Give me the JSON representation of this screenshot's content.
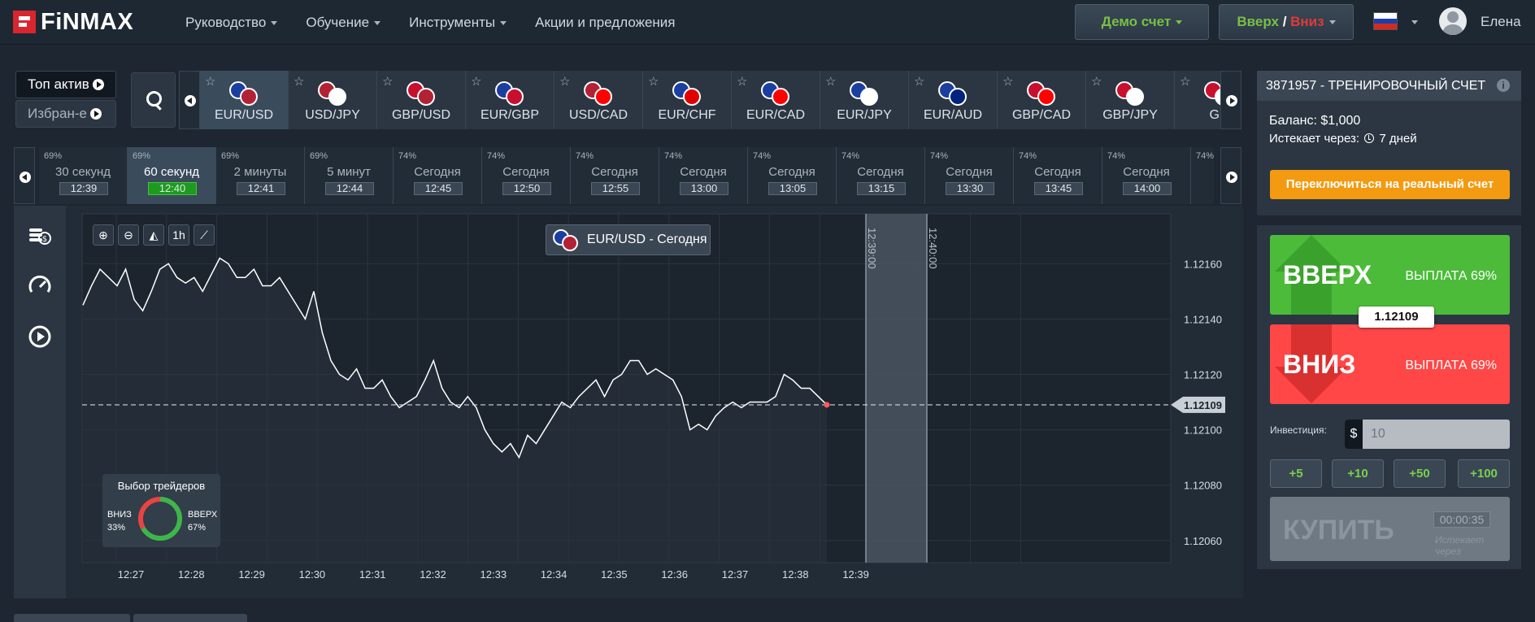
{
  "header": {
    "logo": "FiNMAX",
    "nav": [
      "Руководство",
      "Обучение",
      "Инструменты",
      "Акции и предложения"
    ],
    "nav_has_caret": [
      true,
      true,
      true,
      false
    ],
    "demo_button": "Демо счет",
    "updown_up": "Вверх",
    "updown_sep": " / ",
    "updown_down": "Вниз",
    "username": "Елена",
    "language": "ru"
  },
  "assets": {
    "top_label": "Топ актив",
    "fav_label": "Избран-е",
    "items": [
      {
        "pair": "EUR/USD",
        "active": true,
        "c1": "#1b3fa0",
        "c2": "#b22234"
      },
      {
        "pair": "USD/JPY",
        "active": false,
        "c1": "#b22234",
        "c2": "#ffffff"
      },
      {
        "pair": "GBP/USD",
        "active": false,
        "c1": "#c8102e",
        "c2": "#b22234"
      },
      {
        "pair": "EUR/GBP",
        "active": false,
        "c1": "#1b3fa0",
        "c2": "#c8102e"
      },
      {
        "pair": "USD/CAD",
        "active": false,
        "c1": "#b22234",
        "c2": "#ff0000"
      },
      {
        "pair": "EUR/CHF",
        "active": false,
        "c1": "#1b3fa0",
        "c2": "#e00000"
      },
      {
        "pair": "EUR/CAD",
        "active": false,
        "c1": "#1b3fa0",
        "c2": "#ff0000"
      },
      {
        "pair": "EUR/JPY",
        "active": false,
        "c1": "#1b3fa0",
        "c2": "#ffffff"
      },
      {
        "pair": "EUR/AUD",
        "active": false,
        "c1": "#1b3fa0",
        "c2": "#00247d"
      },
      {
        "pair": "GBP/CAD",
        "active": false,
        "c1": "#c8102e",
        "c2": "#ff0000"
      },
      {
        "pair": "GBP/JPY",
        "active": false,
        "c1": "#c8102e",
        "c2": "#ffffff"
      },
      {
        "pair": "GB",
        "active": false,
        "c1": "#c8102e",
        "c2": "#ffffff"
      }
    ]
  },
  "times": [
    {
      "pct": "69%",
      "label": "30 секунд",
      "time": "12:39",
      "active": false
    },
    {
      "pct": "69%",
      "label": "60 секунд",
      "time": "12:40",
      "active": true
    },
    {
      "pct": "69%",
      "label": "2 минуты",
      "time": "12:41",
      "active": false
    },
    {
      "pct": "69%",
      "label": "5 минут",
      "time": "12:44",
      "active": false
    },
    {
      "pct": "74%",
      "label": "Сегодня",
      "time": "12:45",
      "active": false
    },
    {
      "pct": "74%",
      "label": "Сегодня",
      "time": "12:50",
      "active": false
    },
    {
      "pct": "74%",
      "label": "Сегодня",
      "time": "12:55",
      "active": false
    },
    {
      "pct": "74%",
      "label": "Сегодня",
      "time": "13:00",
      "active": false
    },
    {
      "pct": "74%",
      "label": "Сегодня",
      "time": "13:05",
      "active": false
    },
    {
      "pct": "74%",
      "label": "Сегодня",
      "time": "13:15",
      "active": false
    },
    {
      "pct": "74%",
      "label": "Сегодня",
      "time": "13:30",
      "active": false
    },
    {
      "pct": "74%",
      "label": "Сегодня",
      "time": "13:45",
      "active": false
    },
    {
      "pct": "74%",
      "label": "Сегодня",
      "time": "14:00",
      "active": false
    },
    {
      "pct": "74%",
      "label": "",
      "time": "",
      "active": false
    }
  ],
  "chart": {
    "pair_title": "EUR/USD - Сегодня",
    "zoom_buttons": [
      "zoom-in",
      "zoom-out",
      "area-chart",
      "1h",
      "line-chart"
    ],
    "zoom_labels": [
      "⊕",
      "⊖",
      "◭",
      "1h",
      "⟋"
    ],
    "current_price": "1.12109",
    "expiry_marks": [
      "12:39:00",
      "12:40:00"
    ],
    "traders": {
      "title": "Выбор трейдеров",
      "down_label": "ВНИЗ",
      "down_pct": "33%",
      "up_label": "ВВЕРХ",
      "up_pct": "67%",
      "down_value": 33,
      "up_value": 67
    }
  },
  "chart_data": {
    "type": "line",
    "x_ticks": [
      "12:27",
      "12:28",
      "12:29",
      "12:30",
      "12:31",
      "12:32",
      "12:33",
      "12:34",
      "12:35",
      "12:36",
      "12:37",
      "12:38",
      "12:39"
    ],
    "y_ticks": [
      "1.12160",
      "1.12140",
      "1.12120",
      "1.12100",
      "1.12080",
      "1.12060"
    ],
    "y_tick_values": [
      1.1216,
      1.1214,
      1.1212,
      1.121,
      1.1208,
      1.1206
    ],
    "ylim": [
      1.12052,
      1.12178
    ],
    "xlim": [
      0,
      18
    ],
    "current_line": 1.12109,
    "series": [
      {
        "values": [
          1.12145,
          1.12152,
          1.12158,
          1.12155,
          1.12152,
          1.12158,
          1.12147,
          1.12143,
          1.1215,
          1.12158,
          1.1216,
          1.12155,
          1.12153,
          1.12155,
          1.1215,
          1.12156,
          1.12162,
          1.1216,
          1.12155,
          1.12155,
          1.12158,
          1.12152,
          1.12152,
          1.12155,
          1.1215,
          1.12145,
          1.1214,
          1.1215,
          1.12135,
          1.12125,
          1.1212,
          1.12118,
          1.12122,
          1.12115,
          1.12115,
          1.12118,
          1.12112,
          1.12108,
          1.1211,
          1.12112,
          1.12118,
          1.12125,
          1.12115,
          1.1211,
          1.12108,
          1.12112,
          1.12108,
          1.121,
          1.12095,
          1.12092,
          1.12095,
          1.1209,
          1.12098,
          1.12095,
          1.121,
          1.12105,
          1.1211,
          1.12108,
          1.12112,
          1.12115,
          1.12118,
          1.12112,
          1.12118,
          1.1212,
          1.12125,
          1.12125,
          1.1212,
          1.12122,
          1.1212,
          1.12118,
          1.12112,
          1.121,
          1.12102,
          1.121,
          1.12105,
          1.12108,
          1.1211,
          1.12108,
          1.1211,
          1.1211,
          1.1211,
          1.12112,
          1.1212,
          1.12118,
          1.12115,
          1.12115,
          1.12112,
          1.12109
        ]
      }
    ]
  },
  "account": {
    "title": "3871957 - ТРЕНИРОВОЧНЫЙ СЧЕТ",
    "balance": "Баланс: $1,000",
    "expires_label": "Истекает через:",
    "expires_value": "7 дней",
    "switch_button": "Переключиться на реальный счет"
  },
  "trade": {
    "up_label": "ВВЕРХ",
    "up_payout": "ВЫПЛАТА 69%",
    "down_label": "ВНИЗ",
    "down_payout": "ВЫПЛАТА 69%",
    "price": "1.12109",
    "investment_label": "Инвестиция:",
    "currency": "$",
    "investment_value": "10",
    "quick": [
      "+5",
      "+10",
      "+50",
      "+100"
    ],
    "buy_label": "КУПИТЬ",
    "buy_timer": "00:00:35",
    "buy_expires": "Истекает через"
  },
  "colors": {
    "up": "#4cbb3a",
    "down": "#ff4747",
    "accent": "#f39a11"
  }
}
